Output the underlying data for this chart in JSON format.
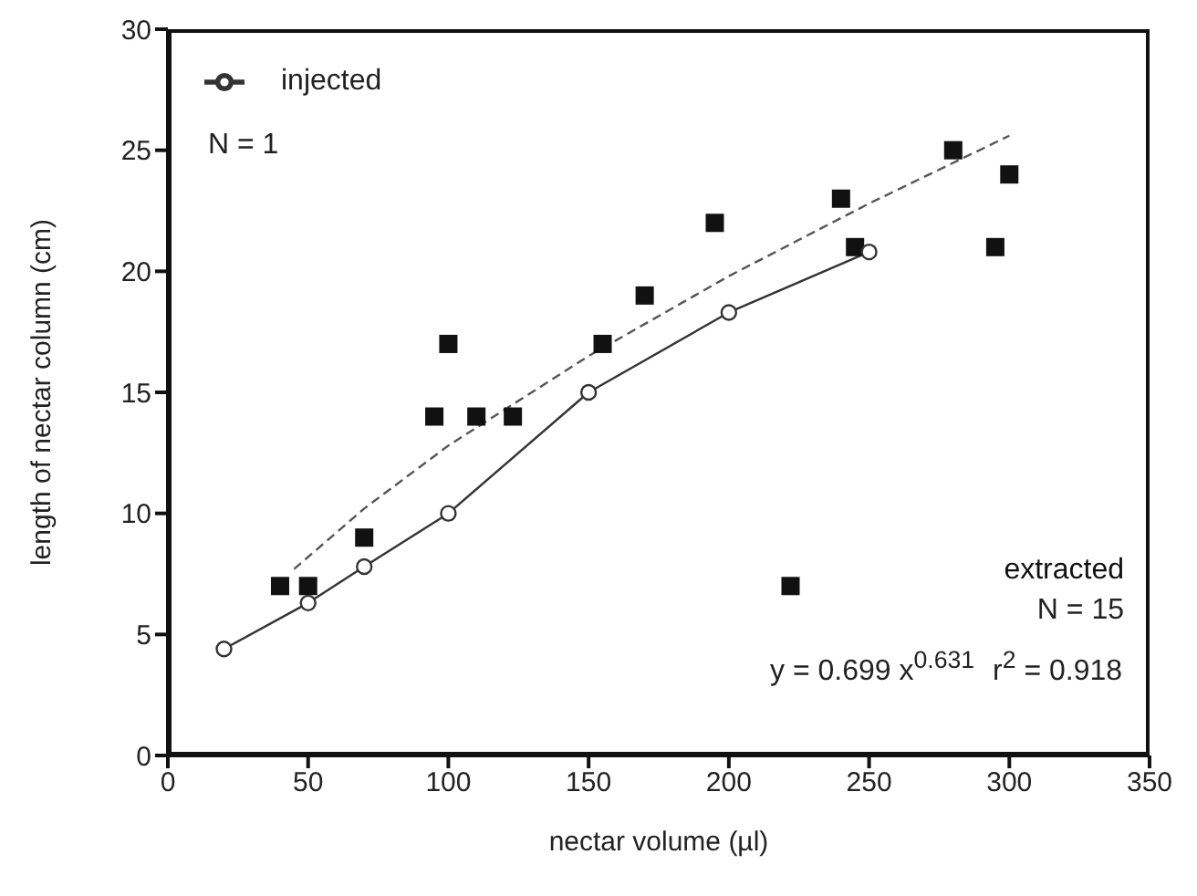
{
  "chart_data": {
    "type": "scatter",
    "xlabel": "nectar volume (µl)",
    "ylabel": "length of nectar column (cm)",
    "xlim": [
      0,
      350
    ],
    "xticks": [
      0,
      50,
      100,
      150,
      200,
      250,
      300,
      350
    ],
    "ylim": [
      0,
      30
    ],
    "yticks": [
      0,
      5,
      10,
      15,
      20,
      25,
      30
    ],
    "grid": false,
    "legend": "top left",
    "annotations": [
      "N = 1",
      "N = 15",
      "y = 0.699 x$^{0.631}$",
      "r$^{2}$ = 0.918"
    ],
    "series": [
      {
        "name": "injected",
        "type": "line",
        "color": "#333333",
        "marker": "circle",
        "line_style": "solid",
        "x": [
          20,
          50,
          70,
          100,
          150,
          200,
          250
        ],
        "values": [
          4.4,
          6.3,
          7.8,
          10,
          15,
          18.3,
          20.8
        ]
      },
      {
        "name": "extracted",
        "type": "scatter",
        "color": "#111111",
        "marker": "square",
        "x": [
          40,
          50,
          70,
          95,
          100,
          110,
          123,
          155,
          170,
          195,
          222,
          240,
          245,
          280,
          295,
          300
        ],
        "values": [
          7,
          7,
          9,
          14,
          17,
          14,
          14,
          17,
          19,
          22,
          7,
          23,
          21,
          25,
          21,
          24
        ]
      },
      {
        "type": "line",
        "color": "#555555",
        "marker": "none",
        "line_style": "dashed",
        "x": [
          45,
          70,
          100,
          150,
          200,
          250,
          300
        ],
        "values": [
          7.7,
          10.2,
          12.8,
          16.5,
          19.8,
          22.8,
          25.6
        ]
      }
    ]
  }
}
